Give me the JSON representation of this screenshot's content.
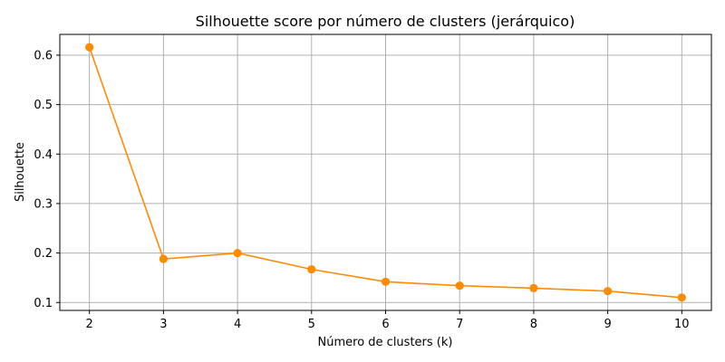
{
  "chart_data": {
    "type": "line",
    "title": "Silhouette score por número de clusters (jerárquico)",
    "xlabel": "Número de clusters (k)",
    "ylabel": "Silhouette",
    "x": [
      2,
      3,
      4,
      5,
      6,
      7,
      8,
      9,
      10
    ],
    "series": [
      {
        "values": [
          0.616,
          0.188,
          0.2,
          0.167,
          0.142,
          0.134,
          0.129,
          0.123,
          0.11
        ],
        "color": "#ff8c00",
        "marker": "circle"
      }
    ],
    "xticks": [
      "2",
      "3",
      "4",
      "5",
      "6",
      "7",
      "8",
      "9",
      "10"
    ],
    "yticks": [
      "0.1",
      "0.2",
      "0.3",
      "0.4",
      "0.5",
      "0.6"
    ],
    "ytick_values": [
      0.1,
      0.2,
      0.3,
      0.4,
      0.5,
      0.6
    ],
    "xlim": [
      1.6,
      10.4
    ],
    "ylim": [
      0.084,
      0.642
    ],
    "grid": true
  }
}
